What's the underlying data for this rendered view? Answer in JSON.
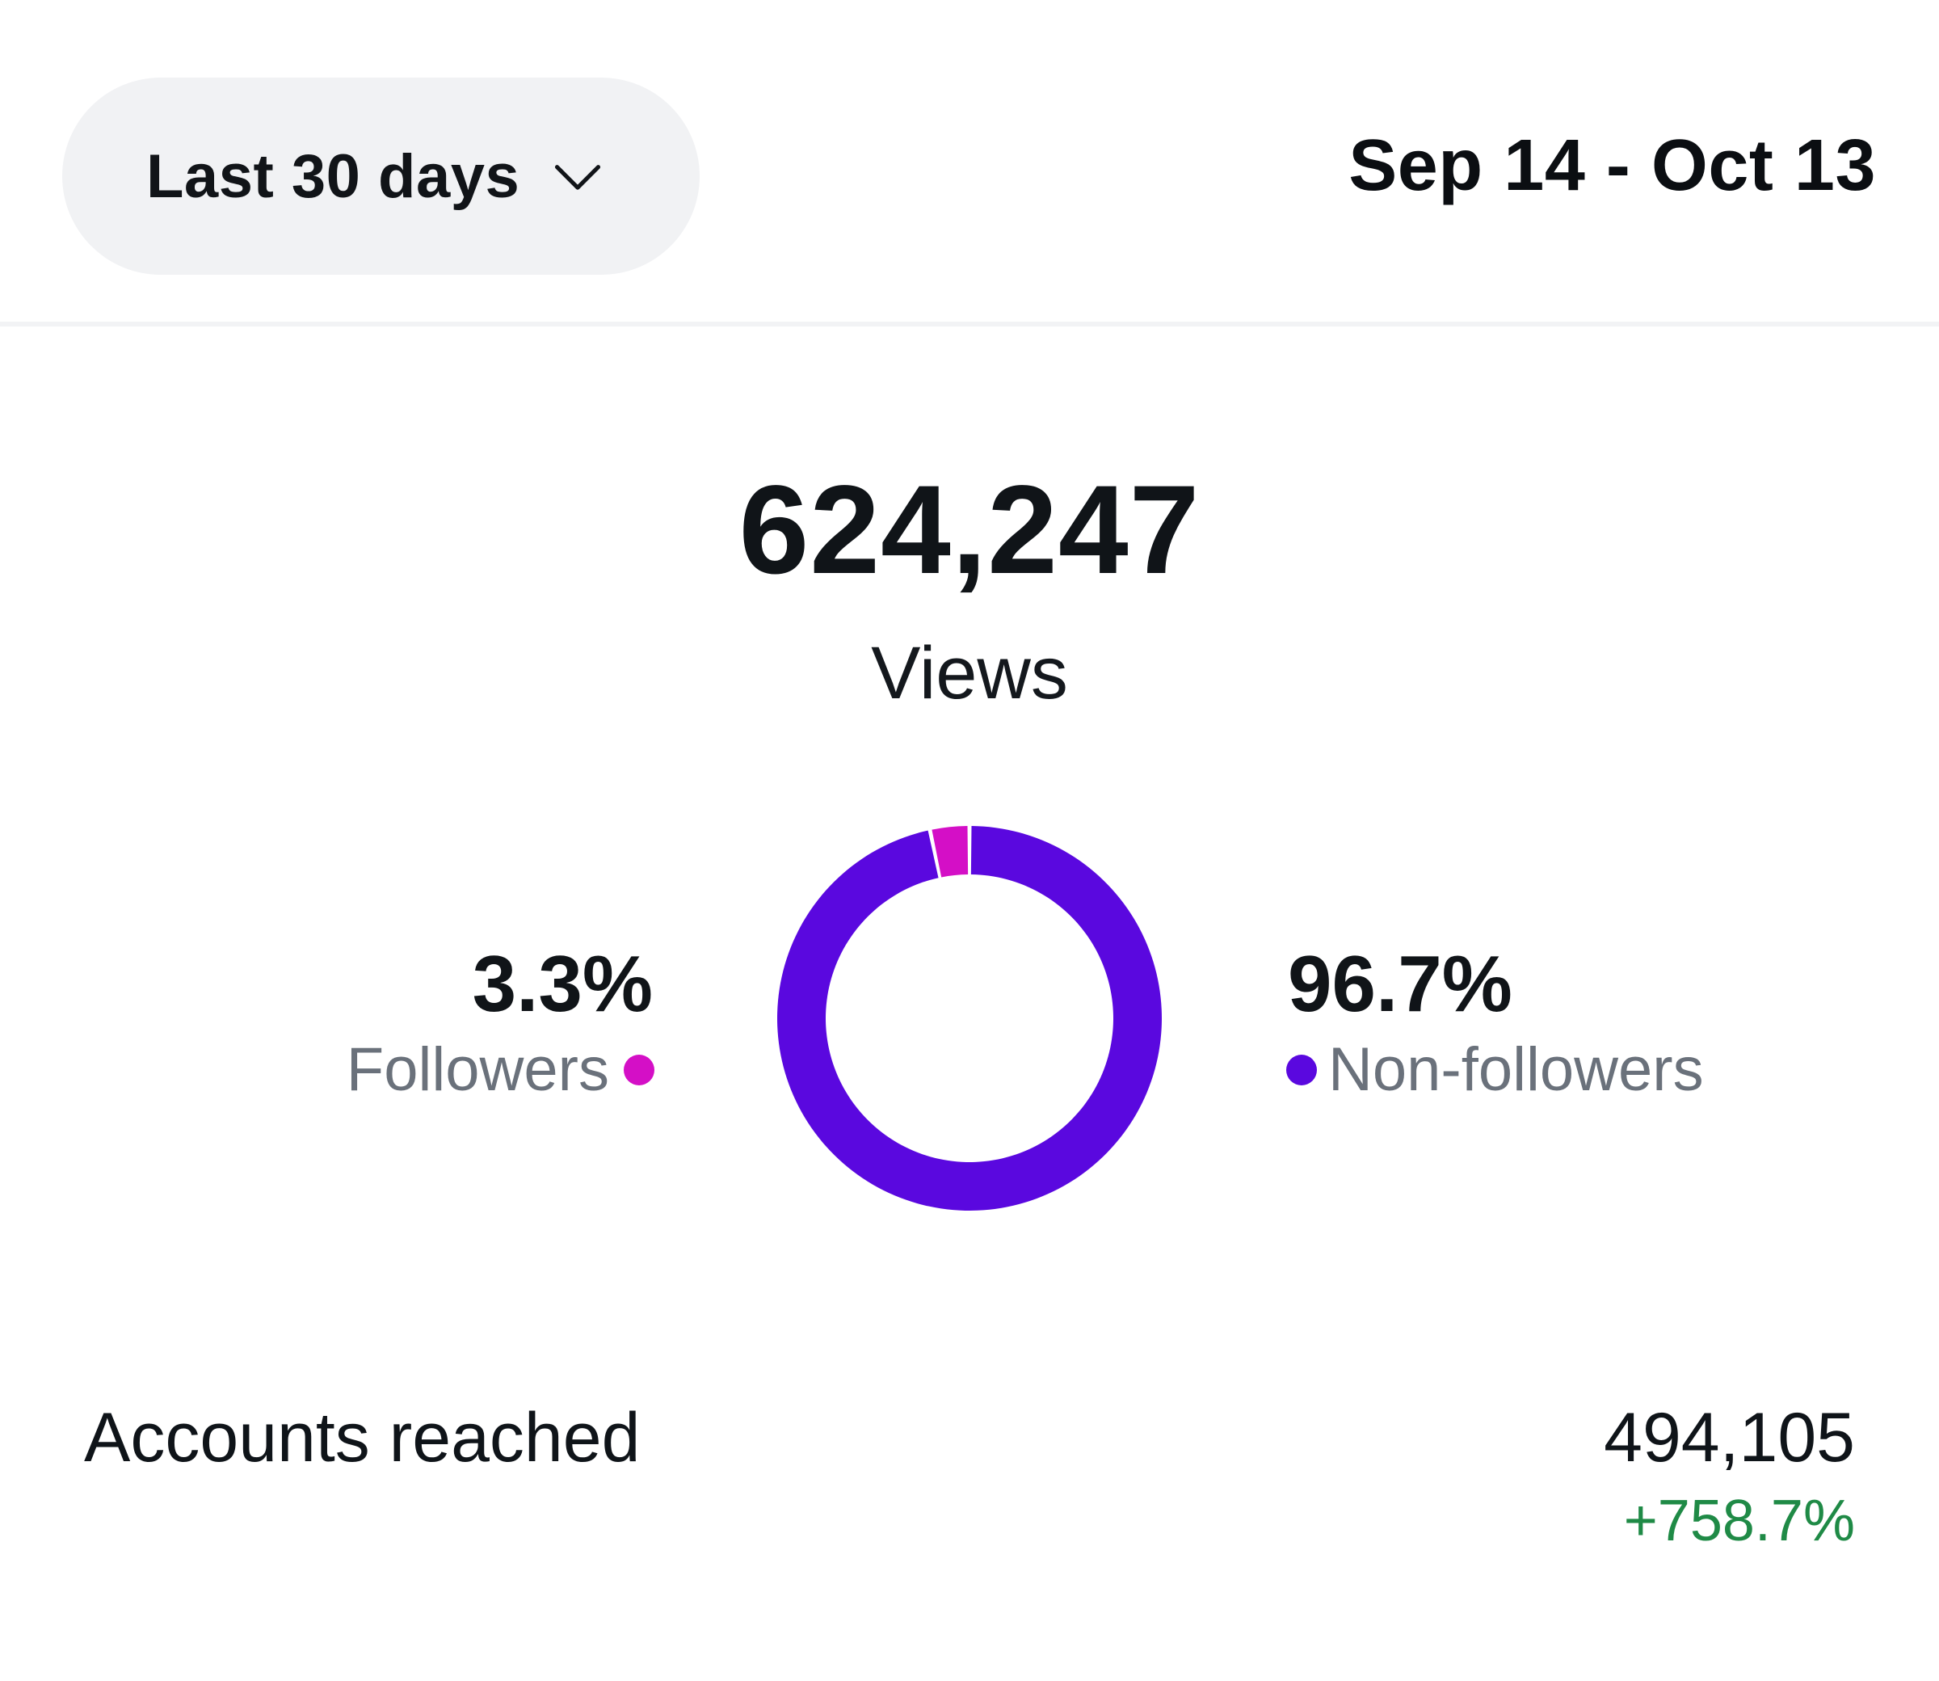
{
  "header": {
    "range_selector_label": "Last 30 days",
    "range_selector_icon": "chevron-down-icon",
    "date_range": "Sep 14 - Oct 13"
  },
  "summary": {
    "total_value": "624,247",
    "total_label": "Views"
  },
  "chart_data": {
    "type": "pie",
    "title": "Views",
    "categories": [
      "Followers",
      "Non-followers"
    ],
    "values": [
      3.3,
      96.7
    ],
    "colors": [
      "#d40fc6",
      "#5a08df"
    ],
    "labels": [
      "3.3%",
      "96.7%"
    ]
  },
  "breakdown": {
    "followers": {
      "percent": "3.3%",
      "label": "Followers",
      "color": "#d40fc6"
    },
    "non_followers": {
      "percent": "96.7%",
      "label": "Non-followers",
      "color": "#5a08df"
    }
  },
  "metrics": {
    "accounts_reached": {
      "label": "Accounts reached",
      "value": "494,105",
      "change": "+758.7%",
      "change_color": "#1f8a46"
    }
  }
}
